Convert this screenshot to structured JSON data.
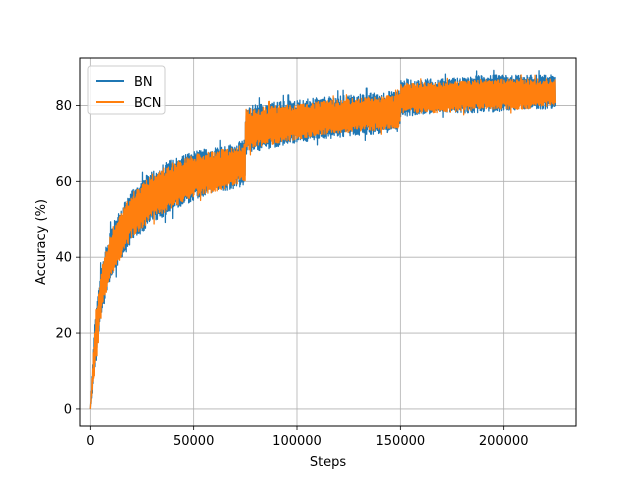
{
  "chart_data": {
    "type": "line",
    "xlabel": "Steps",
    "ylabel": "Accuracy (%)",
    "xlim": [
      -5000,
      235000
    ],
    "ylim": [
      -4.5,
      92.5
    ],
    "xticks": [
      0,
      50000,
      100000,
      150000,
      200000
    ],
    "yticks": [
      0,
      20,
      40,
      60,
      80
    ],
    "xtick_labels": [
      "0",
      "50000",
      "100000",
      "150000",
      "200000"
    ],
    "ytick_labels": [
      "0",
      "20",
      "40",
      "60",
      "80"
    ],
    "grid": true,
    "legend": "top-left",
    "series": [
      {
        "name": "BN",
        "color": "#1f77b4",
        "x": [
          0,
          2000,
          5000,
          10000,
          20000,
          30000,
          40000,
          50000,
          60000,
          70000,
          74900,
          75100,
          90000,
          110000,
          130000,
          149900,
          150100,
          170000,
          190000,
          210000,
          225000
        ],
        "lower": [
          0,
          8,
          24,
          34,
          44,
          49,
          52,
          55,
          57,
          58,
          59,
          67,
          69,
          71,
          72,
          73,
          77,
          78,
          78,
          79,
          79
        ],
        "upper": [
          0,
          22,
          37,
          48,
          58,
          63,
          66,
          68,
          69,
          70,
          71,
          80,
          81,
          82,
          83,
          84,
          87,
          87,
          88,
          88,
          88
        ]
      },
      {
        "name": "BCN",
        "color": "#ff7f0e",
        "x": [
          0,
          2000,
          5000,
          10000,
          20000,
          30000,
          40000,
          50000,
          60000,
          70000,
          74900,
          75100,
          90000,
          110000,
          130000,
          149900,
          150100,
          170000,
          190000,
          210000,
          225000
        ],
        "lower": [
          0,
          9,
          25,
          35,
          45,
          50,
          53,
          56,
          57,
          59,
          60,
          68,
          70,
          72,
          73,
          74,
          78,
          78,
          79,
          79,
          80
        ],
        "upper": [
          0,
          21,
          36,
          47,
          57,
          62,
          65,
          67,
          68,
          69,
          70,
          79,
          80,
          81,
          82,
          83,
          86,
          86,
          87,
          87,
          87
        ]
      }
    ]
  }
}
